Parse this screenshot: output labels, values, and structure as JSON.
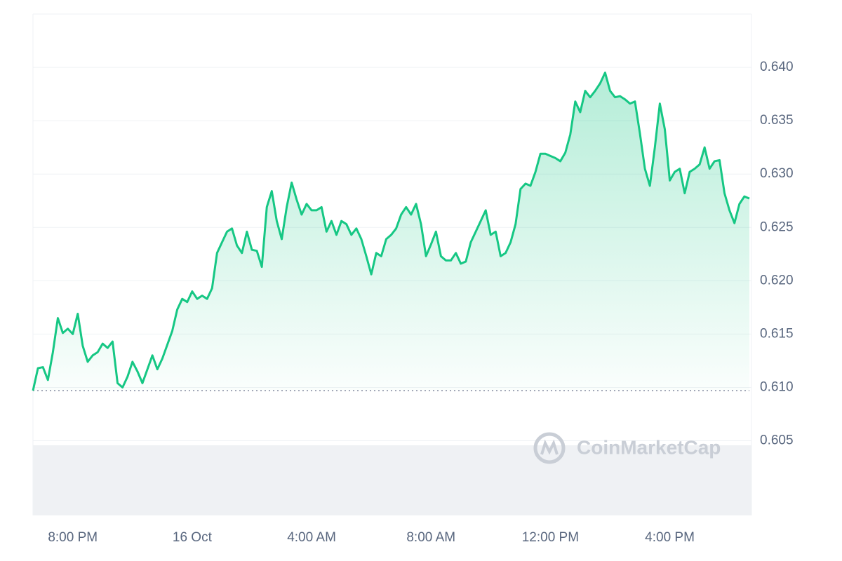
{
  "chart_data": {
    "type": "line",
    "watermark": "CoinMarketCap",
    "categories": [
      null,
      null,
      null,
      null,
      null,
      null,
      null,
      null,
      "8:00 PM",
      null,
      null,
      null,
      null,
      null,
      null,
      null,
      null,
      null,
      null,
      null,
      null,
      null,
      null,
      null,
      null,
      null,
      null,
      null,
      null,
      null,
      null,
      null,
      "16 Oct",
      null,
      null,
      null,
      null,
      null,
      null,
      null,
      null,
      null,
      null,
      null,
      null,
      null,
      null,
      null,
      null,
      null,
      null,
      null,
      null,
      null,
      null,
      null,
      "4:00 AM",
      null,
      null,
      null,
      null,
      null,
      null,
      null,
      null,
      null,
      null,
      null,
      null,
      null,
      null,
      null,
      null,
      null,
      null,
      null,
      null,
      null,
      null,
      null,
      "8:00 AM",
      null,
      null,
      null,
      null,
      null,
      null,
      null,
      null,
      null,
      null,
      null,
      null,
      null,
      null,
      null,
      null,
      null,
      null,
      null,
      null,
      null,
      null,
      null,
      "12:00 PM",
      null,
      null,
      null,
      null,
      null,
      null,
      null,
      null,
      null,
      null,
      null,
      null,
      null,
      null,
      null,
      null,
      null,
      null,
      null,
      null,
      null,
      null,
      null,
      "4:00 PM",
      null,
      null,
      null,
      null,
      null,
      null,
      null,
      null,
      null,
      null,
      null,
      null,
      null,
      null,
      null,
      null
    ],
    "series": [
      {
        "color": "#16c784",
        "values": [
          0.6097,
          0.6118,
          0.6119,
          0.6107,
          0.6133,
          0.6165,
          0.6151,
          0.6155,
          0.615,
          0.6169,
          0.6139,
          0.6124,
          0.613,
          0.6133,
          0.6141,
          0.6137,
          0.6143,
          0.6104,
          0.61,
          0.611,
          0.6124,
          0.6115,
          0.6104,
          0.6117,
          0.613,
          0.6117,
          0.6127,
          0.614,
          0.6153,
          0.6173,
          0.6183,
          0.618,
          0.619,
          0.6183,
          0.6186,
          0.6183,
          0.6193,
          0.6226,
          0.6236,
          0.6246,
          0.6249,
          0.6233,
          0.6226,
          0.6246,
          0.6229,
          0.6228,
          0.6213,
          0.6269,
          0.6284,
          0.6256,
          0.6239,
          0.6269,
          0.6292,
          0.6276,
          0.6262,
          0.6272,
          0.6266,
          0.6266,
          0.6269,
          0.6246,
          0.6256,
          0.6243,
          0.6256,
          0.6253,
          0.6243,
          0.6249,
          0.6239,
          0.6223,
          0.6206,
          0.6226,
          0.6223,
          0.6239,
          0.6243,
          0.6249,
          0.6262,
          0.6269,
          0.6262,
          0.6272,
          0.6253,
          0.6223,
          0.6234,
          0.6246,
          0.6223,
          0.6219,
          0.6219,
          0.6226,
          0.6216,
          0.6218,
          0.6236,
          0.6246,
          0.6256,
          0.6266,
          0.6243,
          0.6246,
          0.6223,
          0.6226,
          0.6236,
          0.6253,
          0.6286,
          0.6291,
          0.6289,
          0.6302,
          0.6319,
          0.6319,
          0.6317,
          0.6315,
          0.6312,
          0.632,
          0.6337,
          0.6368,
          0.6358,
          0.6378,
          0.6372,
          0.6378,
          0.6385,
          0.6395,
          0.6378,
          0.6372,
          0.6373,
          0.637,
          0.6366,
          0.6368,
          0.6338,
          0.6305,
          0.6289,
          0.6325,
          0.6366,
          0.6342,
          0.6294,
          0.6302,
          0.6305,
          0.6282,
          0.6302,
          0.6305,
          0.6309,
          0.6325,
          0.6305,
          0.6312,
          0.6313,
          0.6282,
          0.6266,
          0.6254,
          0.6272,
          0.6279,
          0.6277
        ]
      }
    ],
    "ylim": [
      0.598,
      0.645
    ],
    "yticks": [
      0.605,
      {
        "value": 0.61,
        "label": "0.610"
      },
      0.615,
      {
        "value": 0.62,
        "label": "0.620"
      },
      0.625,
      {
        "value": 0.63,
        "label": "0.630"
      },
      0.635,
      {
        "value": 0.64,
        "label": "0.640"
      }
    ],
    "grid": true
  }
}
